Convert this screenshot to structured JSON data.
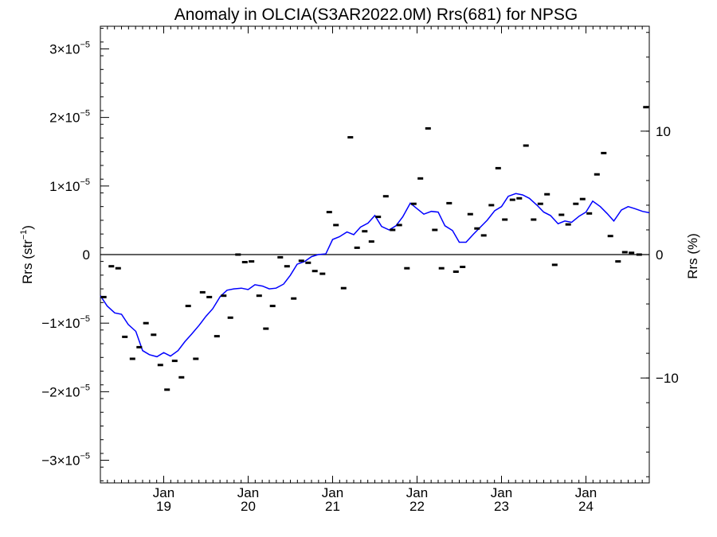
{
  "chart_data": {
    "type": "scatter",
    "title": "Anomaly in OLCIA(S3AR2022.0M) Rrs(681) for NPSG",
    "ylabel": "Rrs (str",
    "ylabel_sup": "−1",
    "ylabel_close": ")",
    "y2label": "Rrs (%)",
    "xlim": [
      2018.25,
      2024.75
    ],
    "ylim": [
      -3.33e-05,
      3.33e-05
    ],
    "y2lim": [
      -18.5,
      18.5
    ],
    "grid": false,
    "legend": "none",
    "colors": {
      "line": "#0000ff",
      "points": "#000000",
      "zero_line": "#000000"
    },
    "x_ticks": [
      {
        "value": 2019.0,
        "month": "Jan",
        "year": "19"
      },
      {
        "value": 2020.0,
        "month": "Jan",
        "year": "20"
      },
      {
        "value": 2021.0,
        "month": "Jan",
        "year": "21"
      },
      {
        "value": 2022.0,
        "month": "Jan",
        "year": "22"
      },
      {
        "value": 2023.0,
        "month": "Jan",
        "year": "23"
      },
      {
        "value": 2024.0,
        "month": "Jan",
        "year": "24"
      }
    ],
    "y_ticks": [
      {
        "value": 3e-05,
        "mantissa": "3×10",
        "exp": "−5"
      },
      {
        "value": 2e-05,
        "mantissa": "2×10",
        "exp": "−5"
      },
      {
        "value": 1e-05,
        "mantissa": "1×10",
        "exp": "−5"
      },
      {
        "value": 0,
        "mantissa": "0",
        "exp": ""
      },
      {
        "value": -1e-05,
        "mantissa": "−1×10",
        "exp": "−5"
      },
      {
        "value": -2e-05,
        "mantissa": "−2×10",
        "exp": "−5"
      },
      {
        "value": -3e-05,
        "mantissa": "−3×10",
        "exp": "−5"
      }
    ],
    "y2_ticks": [
      {
        "value": 10,
        "label": "10"
      },
      {
        "value": 0,
        "label": "0"
      },
      {
        "value": -10,
        "label": "−10"
      }
    ],
    "series": [
      {
        "kind": "points",
        "x": [
          2018.29,
          2018.38,
          2018.46,
          2018.54,
          2018.63,
          2018.71,
          2018.79,
          2018.88,
          2018.96,
          2019.04,
          2019.13,
          2019.21,
          2019.29,
          2019.38,
          2019.46,
          2019.54,
          2019.63,
          2019.71,
          2019.79,
          2019.88,
          2019.96,
          2020.04,
          2020.13,
          2020.21,
          2020.29,
          2020.38,
          2020.46,
          2020.54,
          2020.63,
          2020.71,
          2020.79,
          2020.88,
          2020.96,
          2021.04,
          2021.13,
          2021.21,
          2021.29,
          2021.38,
          2021.46,
          2021.54,
          2021.63,
          2021.71,
          2021.79,
          2021.88,
          2021.96,
          2022.04,
          2022.13,
          2022.21,
          2022.29,
          2022.38,
          2022.46,
          2022.54,
          2022.63,
          2022.71,
          2022.79,
          2022.88,
          2022.96,
          2023.04,
          2023.13,
          2023.21,
          2023.29,
          2023.38,
          2023.46,
          2023.54,
          2023.63,
          2023.71,
          2023.79,
          2023.88,
          2023.96,
          2024.04,
          2024.13,
          2024.21,
          2024.29,
          2024.38,
          2024.46,
          2024.54,
          2024.63,
          2024.71
        ],
        "y": [
          -6.2e-06,
          -1.7e-06,
          -2e-06,
          -1.2e-05,
          -1.52e-05,
          -1.35e-05,
          -1e-05,
          -1.17e-05,
          -1.61e-05,
          -1.97e-05,
          -1.55e-05,
          -1.79e-05,
          -7.5e-06,
          -1.52e-05,
          -5.5e-06,
          -6.2e-06,
          -1.19e-05,
          -6e-06,
          -9.2e-06,
          0.0,
          -1.1e-06,
          -1e-06,
          -6e-06,
          -1.08e-05,
          -7.5e-06,
          -4e-07,
          -1.7e-06,
          -6.4e-06,
          -9e-07,
          -1.2e-06,
          -2.4e-06,
          -2.8e-06,
          6.2e-06,
          4.3e-06,
          -4.9e-06,
          1.71e-05,
          1e-06,
          3.4e-06,
          1.9e-06,
          5.5e-06,
          8.5e-06,
          3.6e-06,
          4.3e-06,
          -2e-06,
          7.4e-06,
          1.11e-05,
          1.84e-05,
          3.6e-06,
          -2e-06,
          7.5e-06,
          -2.5e-06,
          -1.8e-06,
          5.9e-06,
          3.8e-06,
          2.8e-06,
          7.2e-06,
          1.26e-05,
          5.1e-06,
          8e-06,
          8.2e-06,
          1.59e-05,
          5.1e-06,
          7.4e-06,
          8.8e-06,
          -1.5e-06,
          5.8e-06,
          4.4e-06,
          7.4e-06,
          8.1e-06,
          6e-06,
          1.17e-05,
          1.48e-05,
          2.7e-06,
          -1e-06,
          3.5e-07,
          2.5e-07,
          0.0,
          2.15e-05
        ]
      },
      {
        "kind": "line",
        "x": [
          2018.25,
          2018.33,
          2018.42,
          2018.5,
          2018.58,
          2018.67,
          2018.75,
          2018.83,
          2018.92,
          2019.0,
          2019.08,
          2019.17,
          2019.25,
          2019.33,
          2019.42,
          2019.5,
          2019.58,
          2019.67,
          2019.75,
          2019.83,
          2019.92,
          2020.0,
          2020.08,
          2020.17,
          2020.25,
          2020.33,
          2020.42,
          2020.5,
          2020.58,
          2020.67,
          2020.75,
          2020.83,
          2020.92,
          2021.0,
          2021.08,
          2021.17,
          2021.25,
          2021.33,
          2021.42,
          2021.5,
          2021.58,
          2021.67,
          2021.75,
          2021.83,
          2021.92,
          2022.0,
          2022.08,
          2022.17,
          2022.25,
          2022.33,
          2022.42,
          2022.5,
          2022.58,
          2022.67,
          2022.75,
          2022.83,
          2022.92,
          2023.0,
          2023.08,
          2023.17,
          2023.25,
          2023.33,
          2023.42,
          2023.5,
          2023.58,
          2023.67,
          2023.75,
          2023.83,
          2023.92,
          2024.0,
          2024.08,
          2024.17,
          2024.25,
          2024.33,
          2024.42,
          2024.5,
          2024.58,
          2024.67,
          2024.75
        ],
        "y": [
          -6e-06,
          -7.5e-06,
          -8.5e-06,
          -8.7e-06,
          -1.02e-05,
          -1.12e-05,
          -1.4e-05,
          -1.46e-05,
          -1.49e-05,
          -1.43e-05,
          -1.48e-05,
          -1.4e-05,
          -1.27e-05,
          -1.16e-05,
          -1.03e-05,
          -9e-06,
          -7.9e-06,
          -6.1e-06,
          -5.2e-06,
          -5e-06,
          -4.9e-06,
          -5.1e-06,
          -4.4e-06,
          -4.6e-06,
          -5e-06,
          -4.9e-06,
          -4.3e-06,
          -3e-06,
          -1.4e-06,
          -1e-06,
          -3e-07,
          0.0,
          1e-07,
          2.2e-06,
          2.6e-06,
          3.3e-06,
          2.9e-06,
          4e-06,
          4.6e-06,
          5.7e-06,
          4.1e-06,
          3.6e-06,
          4.2e-06,
          5.5e-06,
          7.5e-06,
          6.7e-06,
          5.9e-06,
          6.3e-06,
          6.2e-06,
          4.2e-06,
          3.5e-06,
          1.8e-06,
          1.8e-06,
          3e-06,
          4e-06,
          5e-06,
          6.4e-06,
          7e-06,
          8.5e-06,
          8.9e-06,
          8.7e-06,
          8.2e-06,
          7.2e-06,
          6.2e-06,
          5.7e-06,
          4.5e-06,
          4.9e-06,
          4.7e-06,
          5.6e-06,
          6.2e-06,
          7.8e-06,
          7e-06,
          6e-06,
          4.9e-06,
          6.5e-06,
          7e-06,
          6.7e-06,
          6.3e-06,
          6.1e-06
        ]
      }
    ]
  }
}
